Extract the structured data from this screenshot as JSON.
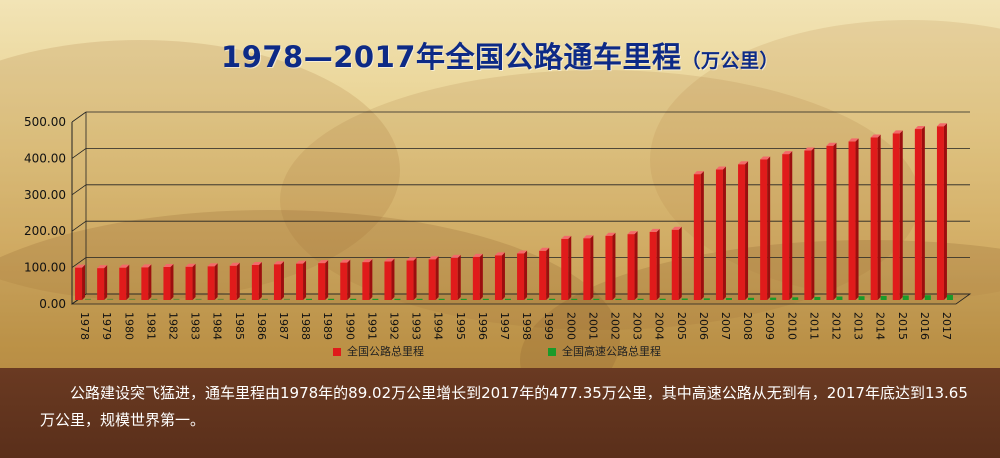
{
  "title": "1978—2017年全国公路通车里程",
  "title_unit": "（万公里）",
  "caption": "公路建设突飞猛进，通车里程由1978年的89.02万公里增长到2017年的477.35万公里，其中高速公路从无到有，2017年底达到13.65万公里，规模世界第一。",
  "colors": {
    "series_total": "#e01b1b",
    "series_expressway": "#1a9a2a",
    "title": "#0d2a86",
    "caption_band": "#5e321d"
  },
  "chart_data": {
    "type": "bar",
    "title": "1978—2017年全国公路通车里程",
    "ylim": [
      0,
      500
    ],
    "yticks": [
      "0.00",
      "100.00",
      "200.00",
      "300.00",
      "400.00",
      "500.00"
    ],
    "grid": true,
    "legend_position": "bottom",
    "categories": [
      "1978",
      "1979",
      "1980",
      "1981",
      "1982",
      "1983",
      "1984",
      "1985",
      "1986",
      "1987",
      "1988",
      "1989",
      "1990",
      "1991",
      "1992",
      "1993",
      "1994",
      "1995",
      "1996",
      "1997",
      "1998",
      "1999",
      "2000",
      "2001",
      "2002",
      "2003",
      "2004",
      "2005",
      "2006",
      "2007",
      "2008",
      "2009",
      "2010",
      "2011",
      "2012",
      "2013",
      "2014",
      "2015",
      "2016",
      "2017"
    ],
    "series": [
      {
        "name": "全国公路总里程",
        "values": [
          89.02,
          87.6,
          88.8,
          89.8,
          90.7,
          91.5,
          92.7,
          94.2,
          96.3,
          98.2,
          100,
          101.4,
          102.8,
          104.1,
          105.7,
          108.4,
          111.8,
          115.7,
          118.6,
          122.6,
          127.8,
          135.2,
          167.98,
          169.8,
          176.5,
          181,
          187.07,
          193.05,
          345.7,
          358.37,
          373.02,
          386.08,
          400.82,
          410.64,
          423.75,
          435.62,
          446.39,
          457.73,
          469.63,
          477.35
        ]
      },
      {
        "name": "全国高速公路总里程",
        "values": [
          0,
          0,
          0,
          0,
          0,
          0,
          0,
          0,
          0,
          0,
          0.01,
          0.03,
          0.05,
          0.06,
          0.07,
          0.11,
          0.16,
          0.21,
          0.34,
          0.48,
          0.87,
          1.16,
          1.63,
          1.94,
          2.51,
          2.97,
          3.43,
          4.1,
          4.53,
          5.39,
          6.03,
          6.51,
          7.41,
          8.49,
          9.62,
          10.44,
          11.19,
          12.35,
          13.1,
          13.65
        ]
      }
    ]
  }
}
